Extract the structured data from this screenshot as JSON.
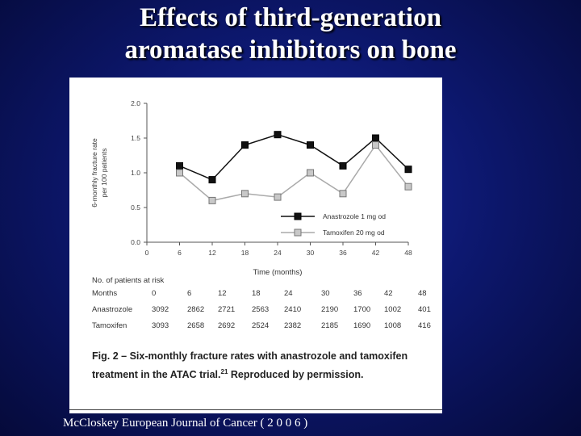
{
  "slide": {
    "title_line1": "Effects of third-generation",
    "title_line2": "aromatase inhibitors on bone",
    "citation": "McCloskey European Journal of Cancer ( 2 0 0 6 )"
  },
  "caption": {
    "fig_label": "Fig. 2 –",
    "text": "Six-monthly fracture rates with anastrozole and tamoxifen treatment in the ATAC trial.",
    "ref": "21",
    "text2": "Reproduced by permission."
  },
  "chart_data": {
    "type": "line",
    "ylabel": "6-monthly fracture rate per 100 patients",
    "xlabel": "Time (months)",
    "x": [
      6,
      12,
      18,
      24,
      30,
      36,
      42,
      48
    ],
    "xticks": [
      0,
      6,
      12,
      18,
      24,
      30,
      36,
      42,
      48
    ],
    "xlim": [
      0,
      48
    ],
    "ylim": [
      0,
      2.0
    ],
    "yticks": [
      "0.0",
      "0.5",
      "1.0",
      "1.5",
      "2.0"
    ],
    "legend_position": "bottom-right",
    "series": [
      {
        "name": "Anastrozole 1 mg od",
        "color": "#111111",
        "marker_fill": "#111111",
        "values": [
          1.1,
          0.9,
          1.4,
          1.55,
          1.4,
          1.1,
          1.5,
          1.05
        ]
      },
      {
        "name": "Tamoxifen 20 mg od",
        "color": "#aaaaaa",
        "marker_fill": "#c8c8c8",
        "values": [
          1.0,
          0.6,
          0.7,
          0.65,
          1.0,
          0.7,
          1.4,
          0.8
        ]
      }
    ]
  },
  "risk_table": {
    "heading": "No. of patients at risk",
    "header_label": "Months",
    "months": [
      "0",
      "6",
      "12",
      "18",
      "24",
      "30",
      "36",
      "42",
      "48"
    ],
    "rows": [
      {
        "label": "Anastrozole",
        "values": [
          "3092",
          "2862",
          "2721",
          "2563",
          "2410",
          "2190",
          "1700",
          "1002",
          "401"
        ]
      },
      {
        "label": "Tamoxifen",
        "values": [
          "3093",
          "2658",
          "2692",
          "2524",
          "2382",
          "2185",
          "1690",
          "1008",
          "416"
        ]
      }
    ]
  }
}
